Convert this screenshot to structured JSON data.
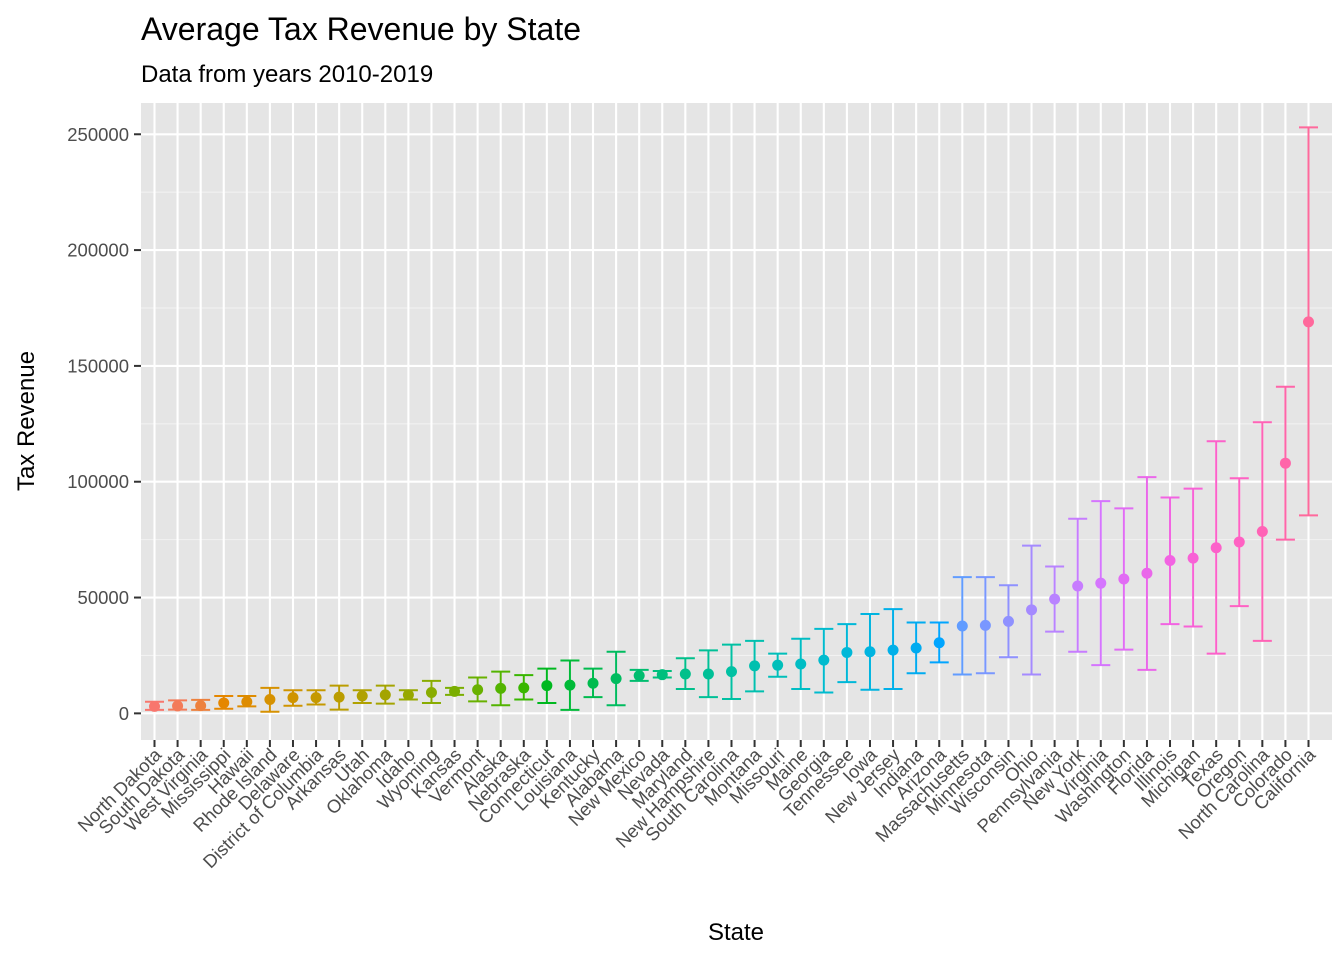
{
  "chart_data": {
    "type": "scatter",
    "title": "Average Tax Revenue by State",
    "subtitle": "Data from years 2010-2019",
    "xlabel": "State",
    "ylabel": "Tax Revenue",
    "ylim": [
      -11500,
      263500
    ],
    "yticks": [
      0,
      50000,
      100000,
      150000,
      200000,
      250000
    ],
    "ytick_labels": [
      "0",
      "50000",
      "100000",
      "150000",
      "200000",
      "250000"
    ],
    "grid": true,
    "legend": "none",
    "panel_background": "#e5e5e5",
    "grid_color": "#ffffff",
    "categories": [
      "North Dakota",
      "South Dakota",
      "West Virginia",
      "Mississippi",
      "Hawaii",
      "Rhode Island",
      "Delaware",
      "District of Columbia",
      "Arkansas",
      "Utah",
      "Oklahoma",
      "Idaho",
      "Wyoming",
      "Kansas",
      "Vermont",
      "Alaska",
      "Nebraska",
      "Connecticut",
      "Louisiana",
      "Kentucky",
      "Alabama",
      "New Mexico",
      "Nevada",
      "Maryland",
      "New Hampshire",
      "South Carolina",
      "Montana",
      "Missouri",
      "Maine",
      "Georgia",
      "Tennessee",
      "Iowa",
      "New Jersey",
      "Indiana",
      "Arizona",
      "Massachusetts",
      "Minnesota",
      "Wisconsin",
      "Ohio",
      "Pennsylvania",
      "New York",
      "Virginia",
      "Washington",
      "Florida",
      "Illinois",
      "Michigan",
      "Texas",
      "Oregon",
      "North Carolina",
      "Colorado",
      "California"
    ],
    "mean": [
      3000,
      3200,
      3300,
      4500,
      5000,
      6000,
      6800,
      6800,
      7000,
      7500,
      8000,
      8000,
      9000,
      9500,
      10200,
      10800,
      11000,
      12000,
      12200,
      13000,
      15000,
      16300,
      16700,
      17000,
      17000,
      18000,
      20500,
      20800,
      21300,
      23000,
      26300,
      26600,
      27300,
      28200,
      30500,
      37700,
      38000,
      39700,
      44700,
      49300,
      55000,
      56200,
      58000,
      60500,
      66000,
      67000,
      71500,
      74000,
      78500,
      108000,
      169000
    ],
    "lower": [
      1500,
      1600,
      1500,
      2000,
      3000,
      700,
      3300,
      3800,
      1600,
      4500,
      4200,
      6000,
      4500,
      8000,
      5200,
      3500,
      6000,
      4500,
      1500,
      7000,
      3500,
      14000,
      15500,
      10500,
      7000,
      6200,
      9500,
      15800,
      10500,
      9000,
      13500,
      10200,
      10500,
      17300,
      22000,
      16800,
      17300,
      24200,
      16800,
      35300,
      26600,
      20800,
      27500,
      18800,
      38500,
      37500,
      25800,
      46300,
      31300,
      75000,
      85500
    ],
    "upper": [
      5000,
      5600,
      5800,
      7500,
      7500,
      11000,
      10000,
      10000,
      12000,
      10000,
      12000,
      10000,
      14000,
      11000,
      15500,
      18000,
      16500,
      19300,
      22800,
      19300,
      26600,
      18800,
      18300,
      23800,
      27200,
      29700,
      31300,
      25800,
      32200,
      36500,
      38500,
      42900,
      45000,
      39200,
      39200,
      58800,
      58800,
      55300,
      72400,
      63400,
      84000,
      91600,
      88500,
      102000,
      93200,
      97000,
      117500,
      101500,
      125700,
      141000,
      253000
    ],
    "colors": [
      "#F8766D",
      "#F37B59",
      "#ED813E",
      "#E58700",
      "#DE8C00",
      "#D69100",
      "#CF9400",
      "#C59900",
      "#BB9D00",
      "#B0A100",
      "#A4A400",
      "#97A800",
      "#89AC00",
      "#7AAE00",
      "#69B100",
      "#53B400",
      "#39B600",
      "#00B81F",
      "#00BA38",
      "#00BB4E",
      "#00BC5F",
      "#00BD6F",
      "#00BF7D",
      "#00C08B",
      "#00C097",
      "#00C1A3",
      "#00C0AF",
      "#00BFBA",
      "#00BDC4",
      "#00BBCE",
      "#00B8D8",
      "#00B4E0",
      "#00B0E9",
      "#00ABF0",
      "#00A5FF",
      "#619CFF",
      "#7997FF",
      "#8F91FF",
      "#A58AFF",
      "#B983FF",
      "#C77CFF",
      "#D575FE",
      "#E16CF4",
      "#EA67EA",
      "#F263E2",
      "#F862D6",
      "#FC61CA",
      "#FF61C3",
      "#FF63B6",
      "#FF65A9",
      "#FF699C"
    ]
  }
}
